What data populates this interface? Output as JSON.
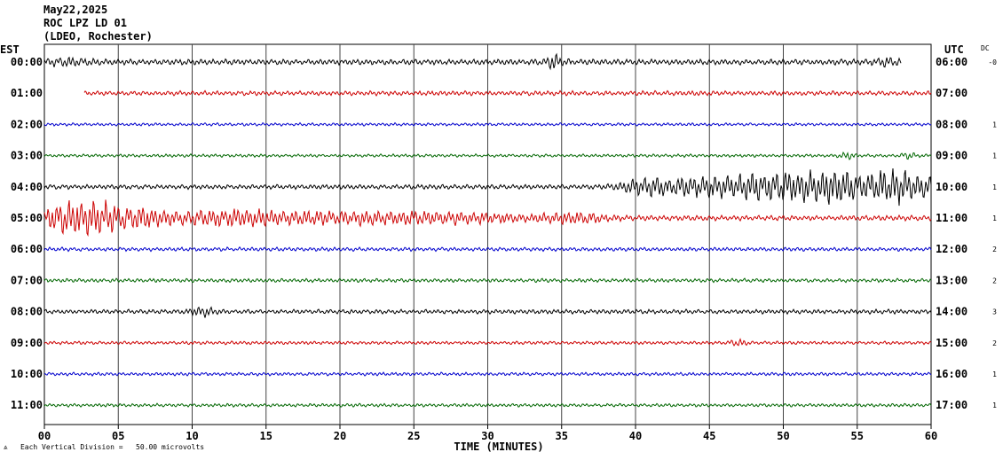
{
  "header": {
    "date": "May22,2025",
    "station": "ROC LPZ LD 01",
    "network": "(LDEO, Rochester)"
  },
  "left_tz": "EST",
  "right_tz": "UTC",
  "dc_label": "DC",
  "footer": {
    "marker": "⩓",
    "note": "Each Vertical Division =   50.00 microvolts"
  },
  "colors": {
    "black": "#000000",
    "red": "#cc0000",
    "blue": "#0000cc",
    "green": "#006600",
    "grid": "#000000"
  },
  "chart_data": {
    "type": "line",
    "title": "",
    "xlabel": "TIME (MINUTES)",
    "ylabel": "",
    "xlim": [
      0,
      60
    ],
    "x_ticks": [
      "00",
      "05",
      "10",
      "15",
      "20",
      "25",
      "30",
      "35",
      "40",
      "45",
      "50",
      "55",
      "60"
    ],
    "grid": true,
    "rows": [
      {
        "est": "00:00",
        "utc": "06:00",
        "dc": "-0",
        "color": "black",
        "start": 0.0,
        "end": 58.0,
        "amp": 0.22,
        "events": [
          [
            1.5,
            0.25,
            1.5
          ],
          [
            34.5,
            0.45,
            0.6
          ],
          [
            57,
            0.2,
            1
          ]
        ]
      },
      {
        "est": "01:00",
        "utc": "07:00",
        "dc": "",
        "color": "red",
        "start": 2.7,
        "end": 60.0,
        "amp": 0.18,
        "events": []
      },
      {
        "est": "02:00",
        "utc": "08:00",
        "dc": "1",
        "color": "blue",
        "start": 0.0,
        "end": 60.0,
        "amp": 0.12,
        "events": []
      },
      {
        "est": "03:00",
        "utc": "09:00",
        "dc": "1",
        "color": "green",
        "start": 0.0,
        "end": 60.0,
        "amp": 0.12,
        "events": [
          [
            54.3,
            0.22,
            0.5
          ],
          [
            58.5,
            0.2,
            0.5
          ]
        ]
      },
      {
        "est": "04:00",
        "utc": "10:00",
        "dc": "1",
        "color": "black",
        "start": 0.0,
        "end": 60.0,
        "amp": 0.18,
        "events": [
          [
            40.5,
            0.45,
            1.5
          ],
          [
            44,
            0.6,
            3
          ],
          [
            49,
            1.0,
            3
          ],
          [
            53,
            0.9,
            2
          ],
          [
            57.5,
            1.2,
            3
          ]
        ]
      },
      {
        "est": "05:00",
        "utc": "11:00",
        "dc": "1",
        "color": "red",
        "start": 0.0,
        "end": 60.0,
        "amp": 0.2,
        "events": [
          [
            1.3,
            1.0,
            1.6
          ],
          [
            3.5,
            1.1,
            1.4
          ],
          [
            6,
            0.65,
            2
          ],
          [
            12,
            0.45,
            5
          ],
          [
            20,
            0.35,
            6
          ],
          [
            28,
            0.3,
            5
          ],
          [
            36,
            0.32,
            2
          ]
        ]
      },
      {
        "est": "06:00",
        "utc": "12:00",
        "dc": "2",
        "color": "blue",
        "start": 0.0,
        "end": 60.0,
        "amp": 0.15,
        "events": []
      },
      {
        "est": "07:00",
        "utc": "13:00",
        "dc": "2",
        "color": "green",
        "start": 0.0,
        "end": 60.0,
        "amp": 0.15,
        "events": []
      },
      {
        "est": "08:00",
        "utc": "14:00",
        "dc": "3",
        "color": "black",
        "start": 0.0,
        "end": 60.0,
        "amp": 0.17,
        "events": [
          [
            10.8,
            0.3,
            0.8
          ]
        ]
      },
      {
        "est": "09:00",
        "utc": "15:00",
        "dc": "2",
        "color": "red",
        "start": 0.0,
        "end": 60.0,
        "amp": 0.13,
        "events": [
          [
            46.9,
            0.22,
            0.5
          ]
        ]
      },
      {
        "est": "10:00",
        "utc": "16:00",
        "dc": "1",
        "color": "blue",
        "start": 0.0,
        "end": 60.0,
        "amp": 0.13,
        "events": []
      },
      {
        "est": "11:00",
        "utc": "17:00",
        "dc": "1",
        "color": "green",
        "start": 0.0,
        "end": 60.0,
        "amp": 0.13,
        "events": []
      }
    ]
  }
}
